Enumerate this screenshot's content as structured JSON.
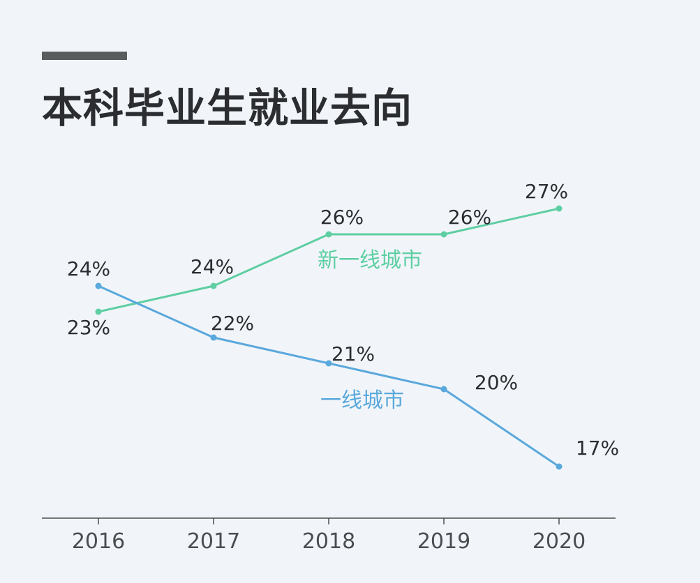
{
  "title": "本科毕业生就业去向",
  "chart_data": {
    "type": "line",
    "title": "本科毕业生就业去向",
    "xlabel": "",
    "ylabel": "",
    "categories": [
      "2016",
      "2017",
      "2018",
      "2019",
      "2020"
    ],
    "unit": "%",
    "ylim": [
      15,
      30
    ],
    "grid": false,
    "series": [
      {
        "name": "新一线城市",
        "color": "#5fcea3",
        "values": [
          23,
          24,
          26,
          26,
          27
        ]
      },
      {
        "name": "一线城市",
        "color": "#5aa8dc",
        "values": [
          24,
          22,
          21,
          20,
          17
        ]
      }
    ]
  }
}
